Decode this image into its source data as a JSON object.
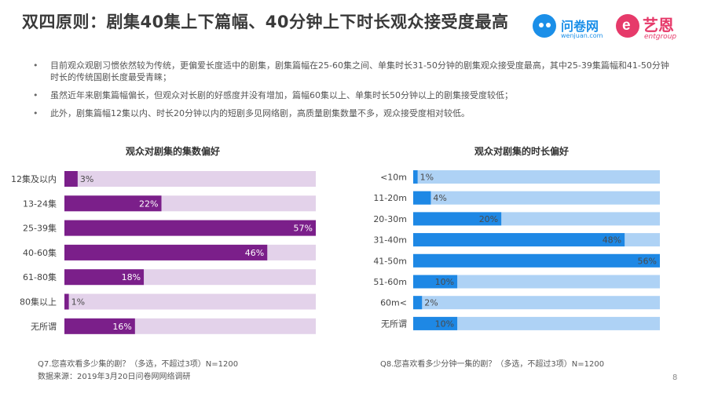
{
  "title": "双四原则：剧集40集上下篇幅、40分钟上下时长观众接受度最高",
  "logos": {
    "wenjuan_name": "问卷网",
    "wenjuan_url": "wenjuan.com",
    "yien_name": "艺恩",
    "yien_sub": "entgroup"
  },
  "bullets": [
    "目前观众观剧习惯依然较为传统，更偏爱长度适中的剧集，剧集篇幅在25-60集之间、单集时长31-50分钟的剧集观众接受度最高，其中25-39集篇幅和41-50分钟时长的传统国剧长度最受青睐；",
    "虽然近年来剧集篇幅偏长，但观众对长剧的好感度并没有增加，篇幅60集以上、单集时长50分钟以上的剧集接受度较低；",
    "此外，剧集篇幅12集以内、时长20分钟以内的短剧多见网络剧，高质量剧集数量不多，观众接受度相对较低。"
  ],
  "bullet_symbol": "•",
  "chart_data": [
    {
      "type": "bar",
      "orientation": "horizontal",
      "title": "观众对剧集的集数偏好",
      "categories": [
        "12集及以内",
        "13-24集",
        "25-39集",
        "40-60集",
        "61-80集",
        "80集以上",
        "无所谓"
      ],
      "values": [
        3,
        22,
        57,
        46,
        18,
        1,
        16
      ],
      "value_suffix": "%",
      "xlim": [
        0,
        57
      ],
      "bar_color": "#7b1f8a",
      "track_color": "#e3d2ea",
      "label_color": "#ffffff",
      "note": "Q7.您喜欢看多少集的剧？（多选，不超过3项）N=1200"
    },
    {
      "type": "bar",
      "orientation": "horizontal",
      "title": "观众对剧集的时长偏好",
      "categories": [
        "<10m",
        "11-20m",
        "20-30m",
        "31-40m",
        "41-50m",
        "51-60m",
        "60m<",
        "无所谓"
      ],
      "values": [
        1,
        4,
        20,
        48,
        56,
        10,
        2,
        10
      ],
      "value_suffix": "%",
      "xlim": [
        0,
        56
      ],
      "bar_color": "#1e88e5",
      "track_color": "#aed2f5",
      "label_color": "#4a4a4a",
      "note": "Q8.您喜欢看多少分钟一集的剧？（多选，不超过3项）N=1200"
    }
  ],
  "source": "数据来源：2019年3月20日问卷网网络调研",
  "page_number": "8"
}
